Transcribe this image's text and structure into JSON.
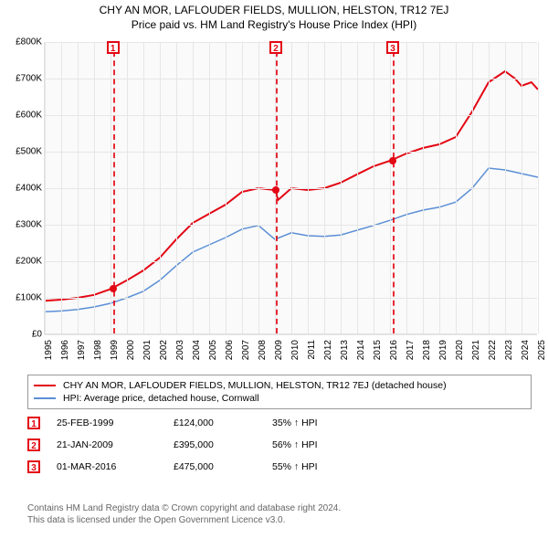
{
  "title": {
    "line1": "CHY AN MOR, LAFLOUDER FIELDS, MULLION, HELSTON, TR12 7EJ",
    "line2": "Price paid vs. HM Land Registry's House Price Index (HPI)"
  },
  "chart": {
    "type": "line",
    "background_color": "#fafafa",
    "grid_color": "#e6e6e6",
    "x": {
      "min": 1995,
      "max": 2025,
      "ticks": [
        1995,
        1996,
        1997,
        1998,
        1999,
        2000,
        2001,
        2002,
        2003,
        2004,
        2005,
        2006,
        2007,
        2008,
        2009,
        2010,
        2011,
        2012,
        2013,
        2014,
        2015,
        2016,
        2017,
        2018,
        2019,
        2020,
        2021,
        2022,
        2023,
        2024,
        2025
      ]
    },
    "y": {
      "min": 0,
      "max": 800000,
      "ticks": [
        0,
        100000,
        200000,
        300000,
        400000,
        500000,
        600000,
        700000,
        800000
      ],
      "tick_labels": [
        "£0",
        "£100K",
        "£200K",
        "£300K",
        "£400K",
        "£500K",
        "£600K",
        "£700K",
        "£800K"
      ]
    },
    "series": [
      {
        "key": "subject",
        "color": "#e30613",
        "width": 2,
        "points": [
          [
            1995,
            92000
          ],
          [
            1996,
            95000
          ],
          [
            1997,
            100000
          ],
          [
            1998,
            108000
          ],
          [
            1999,
            124000
          ],
          [
            2000,
            148000
          ],
          [
            2001,
            175000
          ],
          [
            2002,
            210000
          ],
          [
            2003,
            260000
          ],
          [
            2004,
            305000
          ],
          [
            2005,
            330000
          ],
          [
            2006,
            355000
          ],
          [
            2007,
            390000
          ],
          [
            2008,
            400000
          ],
          [
            2009,
            395000
          ],
          [
            2009.2,
            368000
          ],
          [
            2010,
            400000
          ],
          [
            2011,
            395000
          ],
          [
            2012,
            400000
          ],
          [
            2013,
            415000
          ],
          [
            2014,
            438000
          ],
          [
            2015,
            460000
          ],
          [
            2016,
            475000
          ],
          [
            2017,
            495000
          ],
          [
            2018,
            510000
          ],
          [
            2019,
            520000
          ],
          [
            2020,
            540000
          ],
          [
            2021,
            610000
          ],
          [
            2022,
            690000
          ],
          [
            2023,
            720000
          ],
          [
            2023.6,
            700000
          ],
          [
            2024,
            680000
          ],
          [
            2024.6,
            690000
          ],
          [
            2025,
            670000
          ]
        ]
      },
      {
        "key": "hpi",
        "color": "#5b8fd6",
        "width": 1.5,
        "points": [
          [
            1995,
            62000
          ],
          [
            1996,
            64000
          ],
          [
            1997,
            68000
          ],
          [
            1998,
            75000
          ],
          [
            1999,
            85000
          ],
          [
            2000,
            100000
          ],
          [
            2001,
            118000
          ],
          [
            2002,
            148000
          ],
          [
            2003,
            188000
          ],
          [
            2004,
            225000
          ],
          [
            2005,
            245000
          ],
          [
            2006,
            265000
          ],
          [
            2007,
            288000
          ],
          [
            2008,
            298000
          ],
          [
            2009,
            260000
          ],
          [
            2010,
            278000
          ],
          [
            2011,
            270000
          ],
          [
            2012,
            268000
          ],
          [
            2013,
            272000
          ],
          [
            2014,
            285000
          ],
          [
            2015,
            298000
          ],
          [
            2016,
            312000
          ],
          [
            2017,
            328000
          ],
          [
            2018,
            340000
          ],
          [
            2019,
            348000
          ],
          [
            2020,
            362000
          ],
          [
            2021,
            400000
          ],
          [
            2022,
            455000
          ],
          [
            2023,
            450000
          ],
          [
            2024,
            440000
          ],
          [
            2025,
            430000
          ]
        ]
      }
    ],
    "markers": [
      {
        "n": "1",
        "year": 1999.15,
        "price": 124000
      },
      {
        "n": "2",
        "year": 2009.06,
        "price": 395000
      },
      {
        "n": "3",
        "year": 2016.17,
        "price": 475000
      }
    ]
  },
  "legend": {
    "items": [
      {
        "color": "#e30613",
        "width": 2,
        "label": "CHY AN MOR, LAFLOUDER FIELDS, MULLION, HELSTON, TR12 7EJ (detached house)"
      },
      {
        "color": "#5b8fd6",
        "width": 1.5,
        "label": "HPI: Average price, detached house, Cornwall"
      }
    ]
  },
  "events": [
    {
      "n": "1",
      "date": "25-FEB-1999",
      "price": "£124,000",
      "pct": "35% ↑ HPI"
    },
    {
      "n": "2",
      "date": "21-JAN-2009",
      "price": "£395,000",
      "pct": "56% ↑ HPI"
    },
    {
      "n": "3",
      "date": "01-MAR-2016",
      "price": "£475,000",
      "pct": "55% ↑ HPI"
    }
  ],
  "footer": {
    "line1": "Contains HM Land Registry data © Crown copyright and database right 2024.",
    "line2": "This data is licensed under the Open Government Licence v3.0."
  }
}
